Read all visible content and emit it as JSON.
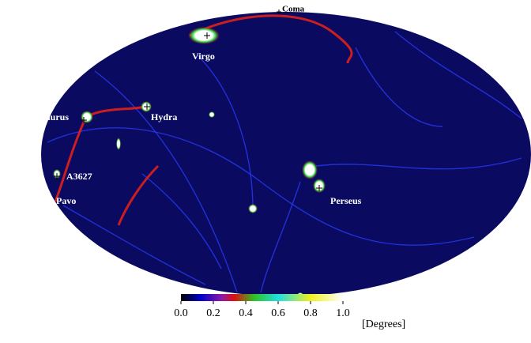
{
  "labels": {
    "coma": "Coma",
    "virgo": "Virgo",
    "centaurus": "Centaurus",
    "hydra": "Hydra",
    "a3627": "A3627",
    "pavo": "Pavo",
    "perseus": "Perseus"
  },
  "colorbar": {
    "lim": [
      0,
      1.0
    ],
    "ticks": [
      {
        "value": 0,
        "label": "0.0"
      },
      {
        "value": 0.2,
        "label": "0.2"
      },
      {
        "value": 0.4,
        "label": "0.4"
      },
      {
        "value": 0.6,
        "label": "0.6"
      },
      {
        "value": 0.8,
        "label": "0.8"
      },
      {
        "value": 1.0,
        "label": "1.0"
      }
    ],
    "unit": "[Degrees]"
  }
}
